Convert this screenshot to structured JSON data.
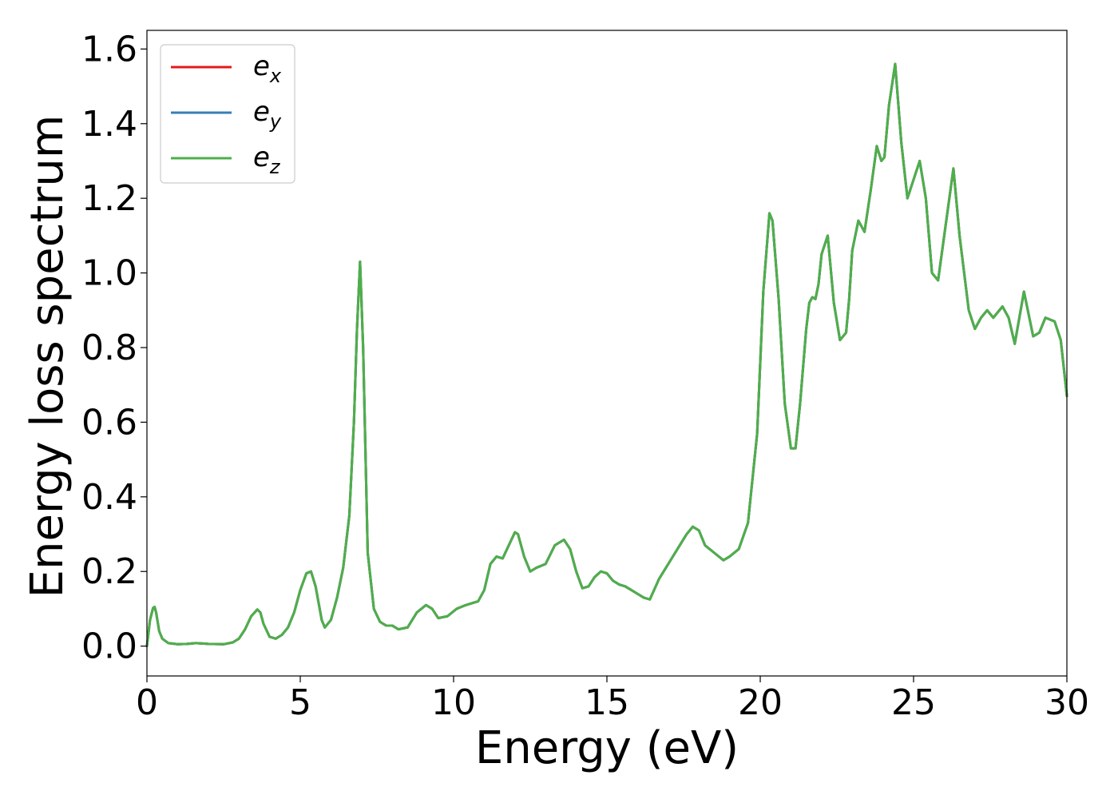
{
  "chart_data": {
    "type": "line",
    "title": "",
    "xlabel": "Energy (eV)",
    "ylabel": "Energy loss spectrum",
    "xlim": [
      0,
      30
    ],
    "ylim": [
      -0.08,
      1.65
    ],
    "xticks": [
      0,
      5,
      10,
      15,
      20,
      25,
      30
    ],
    "xtick_labels": [
      "0",
      "5",
      "10",
      "15",
      "20",
      "25",
      "30"
    ],
    "yticks": [
      0.0,
      0.2,
      0.4,
      0.6,
      0.8,
      1.0,
      1.2,
      1.4,
      1.6
    ],
    "ytick_labels": [
      "0.0",
      "0.2",
      "0.4",
      "0.6",
      "0.8",
      "1.0",
      "1.2",
      "1.4",
      "1.6"
    ],
    "grid": false,
    "legend_position": "top-left",
    "x": [
      0,
      0.1,
      0.2,
      0.25,
      0.3,
      0.4,
      0.5,
      0.7,
      1.0,
      1.3,
      1.6,
      2.0,
      2.5,
      2.8,
      3.0,
      3.2,
      3.4,
      3.6,
      3.7,
      3.8,
      4.0,
      4.2,
      4.4,
      4.6,
      4.8,
      5.0,
      5.2,
      5.35,
      5.5,
      5.7,
      5.8,
      6.0,
      6.2,
      6.4,
      6.6,
      6.75,
      6.85,
      6.95,
      7.05,
      7.2,
      7.4,
      7.6,
      7.8,
      8.0,
      8.2,
      8.5,
      8.8,
      9.1,
      9.3,
      9.5,
      9.8,
      10.1,
      10.4,
      10.8,
      11.0,
      11.2,
      11.4,
      11.6,
      11.8,
      12.0,
      12.1,
      12.3,
      12.5,
      12.7,
      13.0,
      13.3,
      13.6,
      13.8,
      14.0,
      14.2,
      14.4,
      14.6,
      14.8,
      15.0,
      15.2,
      15.4,
      15.6,
      15.8,
      16.0,
      16.2,
      16.4,
      16.7,
      17.0,
      17.3,
      17.6,
      17.8,
      18.0,
      18.2,
      18.5,
      18.8,
      19.0,
      19.3,
      19.6,
      19.9,
      20.1,
      20.3,
      20.4,
      20.6,
      20.8,
      21.0,
      21.15,
      21.3,
      21.5,
      21.6,
      21.7,
      21.8,
      21.9,
      22.0,
      22.2,
      22.4,
      22.6,
      22.8,
      22.9,
      23.0,
      23.2,
      23.4,
      23.6,
      23.8,
      23.95,
      24.05,
      24.2,
      24.4,
      24.6,
      24.8,
      25.0,
      25.2,
      25.4,
      25.6,
      25.8,
      26.0,
      26.3,
      26.5,
      26.8,
      27.0,
      27.2,
      27.4,
      27.6,
      27.9,
      28.1,
      28.3,
      28.6,
      28.9,
      29.1,
      29.3,
      29.6,
      29.8,
      30.0
    ],
    "series": [
      {
        "name": "e_x",
        "color": "#e41a1c",
        "values": [
          0.0,
          0.07,
          0.102,
          0.105,
          0.09,
          0.04,
          0.02,
          0.008,
          0.005,
          0.006,
          0.008,
          0.006,
          0.005,
          0.01,
          0.02,
          0.045,
          0.08,
          0.098,
          0.09,
          0.06,
          0.025,
          0.02,
          0.03,
          0.05,
          0.09,
          0.15,
          0.195,
          0.2,
          0.16,
          0.07,
          0.05,
          0.07,
          0.13,
          0.21,
          0.35,
          0.6,
          0.85,
          1.03,
          0.8,
          0.25,
          0.1,
          0.065,
          0.055,
          0.055,
          0.045,
          0.05,
          0.09,
          0.11,
          0.1,
          0.075,
          0.08,
          0.1,
          0.11,
          0.12,
          0.15,
          0.22,
          0.24,
          0.235,
          0.27,
          0.305,
          0.3,
          0.24,
          0.2,
          0.21,
          0.22,
          0.27,
          0.285,
          0.26,
          0.2,
          0.155,
          0.16,
          0.185,
          0.2,
          0.195,
          0.175,
          0.165,
          0.16,
          0.15,
          0.14,
          0.13,
          0.125,
          0.18,
          0.22,
          0.26,
          0.3,
          0.32,
          0.31,
          0.27,
          0.25,
          0.23,
          0.24,
          0.26,
          0.33,
          0.57,
          0.95,
          1.16,
          1.14,
          0.93,
          0.65,
          0.53,
          0.53,
          0.65,
          0.85,
          0.92,
          0.935,
          0.93,
          0.97,
          1.05,
          1.1,
          0.92,
          0.82,
          0.84,
          0.93,
          1.06,
          1.14,
          1.11,
          1.22,
          1.34,
          1.3,
          1.31,
          1.45,
          1.56,
          1.35,
          1.2,
          1.25,
          1.3,
          1.2,
          1.0,
          0.98,
          1.1,
          1.28,
          1.1,
          0.9,
          0.85,
          0.88,
          0.9,
          0.88,
          0.91,
          0.88,
          0.81,
          0.95,
          0.83,
          0.84,
          0.88,
          0.87,
          0.82,
          0.67
        ]
      },
      {
        "name": "e_y",
        "color": "#377eb8",
        "values": [
          0.0,
          0.07,
          0.102,
          0.105,
          0.09,
          0.04,
          0.02,
          0.008,
          0.005,
          0.006,
          0.008,
          0.006,
          0.005,
          0.01,
          0.02,
          0.045,
          0.08,
          0.098,
          0.09,
          0.06,
          0.025,
          0.02,
          0.03,
          0.05,
          0.09,
          0.15,
          0.195,
          0.2,
          0.16,
          0.07,
          0.05,
          0.07,
          0.13,
          0.21,
          0.35,
          0.6,
          0.85,
          1.03,
          0.8,
          0.25,
          0.1,
          0.065,
          0.055,
          0.055,
          0.045,
          0.05,
          0.09,
          0.11,
          0.1,
          0.075,
          0.08,
          0.1,
          0.11,
          0.12,
          0.15,
          0.22,
          0.24,
          0.235,
          0.27,
          0.305,
          0.3,
          0.24,
          0.2,
          0.21,
          0.22,
          0.27,
          0.285,
          0.26,
          0.2,
          0.155,
          0.16,
          0.185,
          0.2,
          0.195,
          0.175,
          0.165,
          0.16,
          0.15,
          0.14,
          0.13,
          0.125,
          0.18,
          0.22,
          0.26,
          0.3,
          0.32,
          0.31,
          0.27,
          0.25,
          0.23,
          0.24,
          0.26,
          0.33,
          0.57,
          0.95,
          1.16,
          1.14,
          0.93,
          0.65,
          0.53,
          0.53,
          0.65,
          0.85,
          0.92,
          0.935,
          0.93,
          0.97,
          1.05,
          1.1,
          0.92,
          0.82,
          0.84,
          0.93,
          1.06,
          1.14,
          1.11,
          1.22,
          1.34,
          1.3,
          1.31,
          1.45,
          1.56,
          1.35,
          1.2,
          1.25,
          1.3,
          1.2,
          1.0,
          0.98,
          1.1,
          1.28,
          1.1,
          0.9,
          0.85,
          0.88,
          0.9,
          0.88,
          0.91,
          0.88,
          0.81,
          0.95,
          0.83,
          0.84,
          0.88,
          0.87,
          0.82,
          0.67
        ]
      },
      {
        "name": "e_z",
        "color": "#4daf4a",
        "values": [
          0.0,
          0.07,
          0.102,
          0.105,
          0.09,
          0.04,
          0.02,
          0.008,
          0.005,
          0.006,
          0.008,
          0.006,
          0.005,
          0.01,
          0.02,
          0.045,
          0.08,
          0.098,
          0.09,
          0.06,
          0.025,
          0.02,
          0.03,
          0.05,
          0.09,
          0.15,
          0.195,
          0.2,
          0.16,
          0.07,
          0.05,
          0.07,
          0.13,
          0.21,
          0.35,
          0.6,
          0.85,
          1.03,
          0.8,
          0.25,
          0.1,
          0.065,
          0.055,
          0.055,
          0.045,
          0.05,
          0.09,
          0.11,
          0.1,
          0.075,
          0.08,
          0.1,
          0.11,
          0.12,
          0.15,
          0.22,
          0.24,
          0.235,
          0.27,
          0.305,
          0.3,
          0.24,
          0.2,
          0.21,
          0.22,
          0.27,
          0.285,
          0.26,
          0.2,
          0.155,
          0.16,
          0.185,
          0.2,
          0.195,
          0.175,
          0.165,
          0.16,
          0.15,
          0.14,
          0.13,
          0.125,
          0.18,
          0.22,
          0.26,
          0.3,
          0.32,
          0.31,
          0.27,
          0.25,
          0.23,
          0.24,
          0.26,
          0.33,
          0.57,
          0.95,
          1.16,
          1.14,
          0.93,
          0.65,
          0.53,
          0.53,
          0.65,
          0.85,
          0.92,
          0.935,
          0.93,
          0.97,
          1.05,
          1.1,
          0.92,
          0.82,
          0.84,
          0.93,
          1.06,
          1.14,
          1.11,
          1.22,
          1.34,
          1.3,
          1.31,
          1.45,
          1.56,
          1.35,
          1.2,
          1.25,
          1.3,
          1.2,
          1.0,
          0.98,
          1.1,
          1.28,
          1.1,
          0.9,
          0.85,
          0.88,
          0.9,
          0.88,
          0.91,
          0.88,
          0.81,
          0.95,
          0.83,
          0.84,
          0.88,
          0.87,
          0.82,
          0.67
        ]
      }
    ],
    "legend": [
      {
        "base": "e",
        "sub": "x",
        "color": "#e41a1c"
      },
      {
        "base": "e",
        "sub": "y",
        "color": "#377eb8"
      },
      {
        "base": "e",
        "sub": "z",
        "color": "#4daf4a"
      }
    ]
  }
}
